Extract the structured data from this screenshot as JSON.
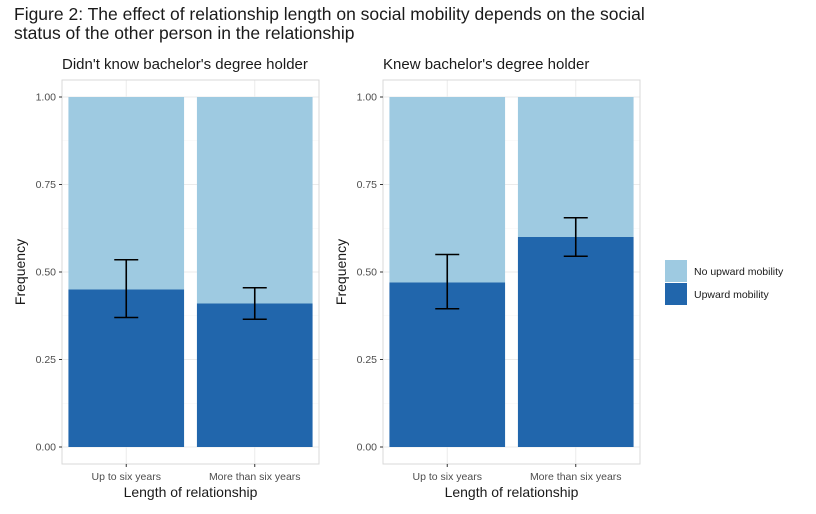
{
  "figure": {
    "title_line1": "Figure 2: The effect of relationship length on social mobility depends on the social",
    "title_line2": "status of the other person in the relationship"
  },
  "chart_data": [
    {
      "type": "bar",
      "stacked": true,
      "title": "Didn't know bachelor's degree holder",
      "xlabel": "Length of relationship",
      "ylabel": "Frequency",
      "ylim": [
        0,
        1
      ],
      "yticks": [
        "0.00",
        "0.25",
        "0.50",
        "0.75",
        "1.00"
      ],
      "categories": [
        "Up to six years",
        "More than six years"
      ],
      "series": [
        {
          "name": "Upward mobility",
          "values": [
            0.45,
            0.41
          ]
        },
        {
          "name": "No upward mobility",
          "values": [
            0.55,
            0.59
          ]
        }
      ],
      "error_bars": [
        {
          "low": 0.37,
          "high": 0.535
        },
        {
          "low": 0.365,
          "high": 0.455
        }
      ],
      "grid": true
    },
    {
      "type": "bar",
      "stacked": true,
      "title": "Knew bachelor's degree holder",
      "xlabel": "Length of relationship",
      "ylabel": "Frequency",
      "ylim": [
        0,
        1
      ],
      "yticks": [
        "0.00",
        "0.25",
        "0.50",
        "0.75",
        "1.00"
      ],
      "categories": [
        "Up to six years",
        "More than six years"
      ],
      "series": [
        {
          "name": "Upward mobility",
          "values": [
            0.47,
            0.6
          ]
        },
        {
          "name": "No upward mobility",
          "values": [
            0.53,
            0.4
          ]
        }
      ],
      "error_bars": [
        {
          "low": 0.395,
          "high": 0.55
        },
        {
          "low": 0.545,
          "high": 0.655
        }
      ],
      "grid": true
    }
  ],
  "legend": {
    "placement": "right",
    "items": [
      {
        "label": "No upward mobility",
        "color": "#9ecae1"
      },
      {
        "label": "Upward mobility",
        "color": "#2166ac"
      }
    ]
  },
  "colors": {
    "upward": "#2166ac",
    "no_upward": "#9ecae1",
    "error_bar": "#000000",
    "panel_border": "#d9d9d9",
    "grid_major": "#ebebeb",
    "grid_minor": "#f5f5f5"
  }
}
